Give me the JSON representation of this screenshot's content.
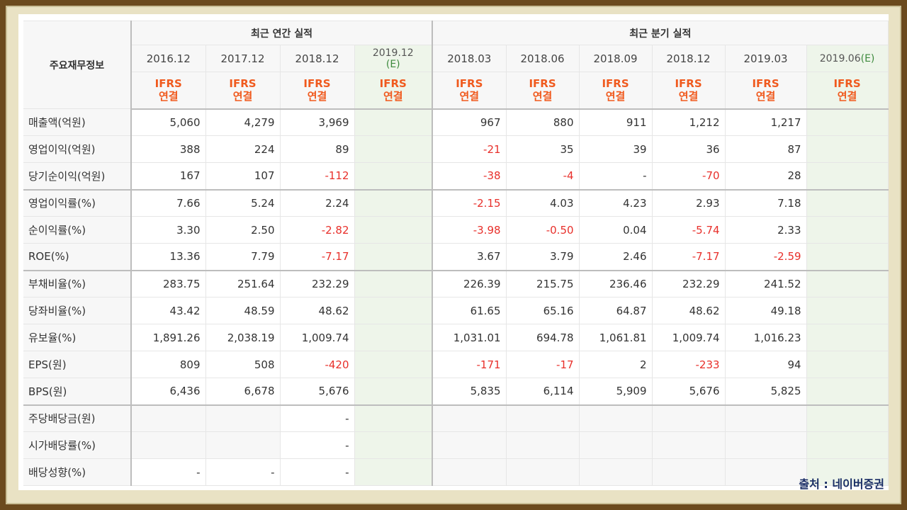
{
  "header": {
    "side_title": "주요재무정보",
    "annual_group": "최근 연간 실적",
    "quarter_group": "최근 분기 실적",
    "annual_periods": [
      {
        "label": "2016.12",
        "est": ""
      },
      {
        "label": "2017.12",
        "est": ""
      },
      {
        "label": "2018.12",
        "est": ""
      },
      {
        "label": "2019.12",
        "est": "(E)"
      }
    ],
    "quarter_periods": [
      {
        "label": "2018.03",
        "est": ""
      },
      {
        "label": "2018.06",
        "est": ""
      },
      {
        "label": "2018.09",
        "est": ""
      },
      {
        "label": "2018.12",
        "est": ""
      },
      {
        "label": "2019.03",
        "est": ""
      },
      {
        "label": "2019.06",
        "est": "(E)"
      }
    ],
    "basis_top": "IFRS",
    "basis_bottom": "연결"
  },
  "rows": [
    {
      "label": "매출액(억원)",
      "annual": [
        "5,060",
        "4,279",
        "3,969",
        ""
      ],
      "quarter": [
        "967",
        "880",
        "911",
        "1,212",
        "1,217",
        ""
      ]
    },
    {
      "label": "영업이익(억원)",
      "annual": [
        "388",
        "224",
        "89",
        ""
      ],
      "quarter": [
        "-21",
        "35",
        "39",
        "36",
        "87",
        ""
      ]
    },
    {
      "label": "당기순이익(억원)",
      "annual": [
        "167",
        "107",
        "-112",
        ""
      ],
      "quarter": [
        "-38",
        "-4",
        "-",
        "-70",
        "28",
        ""
      ]
    },
    {
      "label": "영업이익률(%)",
      "annual": [
        "7.66",
        "5.24",
        "2.24",
        ""
      ],
      "quarter": [
        "-2.15",
        "4.03",
        "4.23",
        "2.93",
        "7.18",
        ""
      ]
    },
    {
      "label": "순이익률(%)",
      "annual": [
        "3.30",
        "2.50",
        "-2.82",
        ""
      ],
      "quarter": [
        "-3.98",
        "-0.50",
        "0.04",
        "-5.74",
        "2.33",
        ""
      ]
    },
    {
      "label": "ROE(%)",
      "annual": [
        "13.36",
        "7.79",
        "-7.17",
        ""
      ],
      "quarter": [
        "3.67",
        "3.79",
        "2.46",
        "-7.17",
        "-2.59",
        ""
      ]
    },
    {
      "label": "부채비율(%)",
      "annual": [
        "283.75",
        "251.64",
        "232.29",
        ""
      ],
      "quarter": [
        "226.39",
        "215.75",
        "236.46",
        "232.29",
        "241.52",
        ""
      ]
    },
    {
      "label": "당좌비율(%)",
      "annual": [
        "43.42",
        "48.59",
        "48.62",
        ""
      ],
      "quarter": [
        "61.65",
        "65.16",
        "64.87",
        "48.62",
        "49.18",
        ""
      ]
    },
    {
      "label": "유보율(%)",
      "annual": [
        "1,891.26",
        "2,038.19",
        "1,009.74",
        ""
      ],
      "quarter": [
        "1,031.01",
        "694.78",
        "1,061.81",
        "1,009.74",
        "1,016.23",
        ""
      ]
    },
    {
      "label": "EPS(원)",
      "annual": [
        "809",
        "508",
        "-420",
        ""
      ],
      "quarter": [
        "-171",
        "-17",
        "2",
        "-233",
        "94",
        ""
      ]
    },
    {
      "label": "BPS(원)",
      "annual": [
        "6,436",
        "6,678",
        "5,676",
        ""
      ],
      "quarter": [
        "5,835",
        "6,114",
        "5,909",
        "5,676",
        "5,825",
        ""
      ]
    },
    {
      "label": "주당배당금(원)",
      "annual": [
        "",
        "",
        "-",
        ""
      ],
      "quarter": [
        "",
        "",
        "",
        "",
        "",
        ""
      ]
    },
    {
      "label": "시가배당률(%)",
      "annual": [
        "",
        "",
        "-",
        ""
      ],
      "quarter": [
        "",
        "",
        "",
        "",
        "",
        ""
      ]
    },
    {
      "label": "배당성향(%)",
      "annual": [
        "-",
        "-",
        "-",
        ""
      ],
      "quarter": [
        "",
        "",
        "",
        "",
        "",
        ""
      ]
    }
  ],
  "source": "출처 : 네이버증권",
  "colors": {
    "negative": "#e8302b",
    "basis": "#f05a1e",
    "estimate_bg": "#eef5ea",
    "source": "#1a2e66"
  }
}
